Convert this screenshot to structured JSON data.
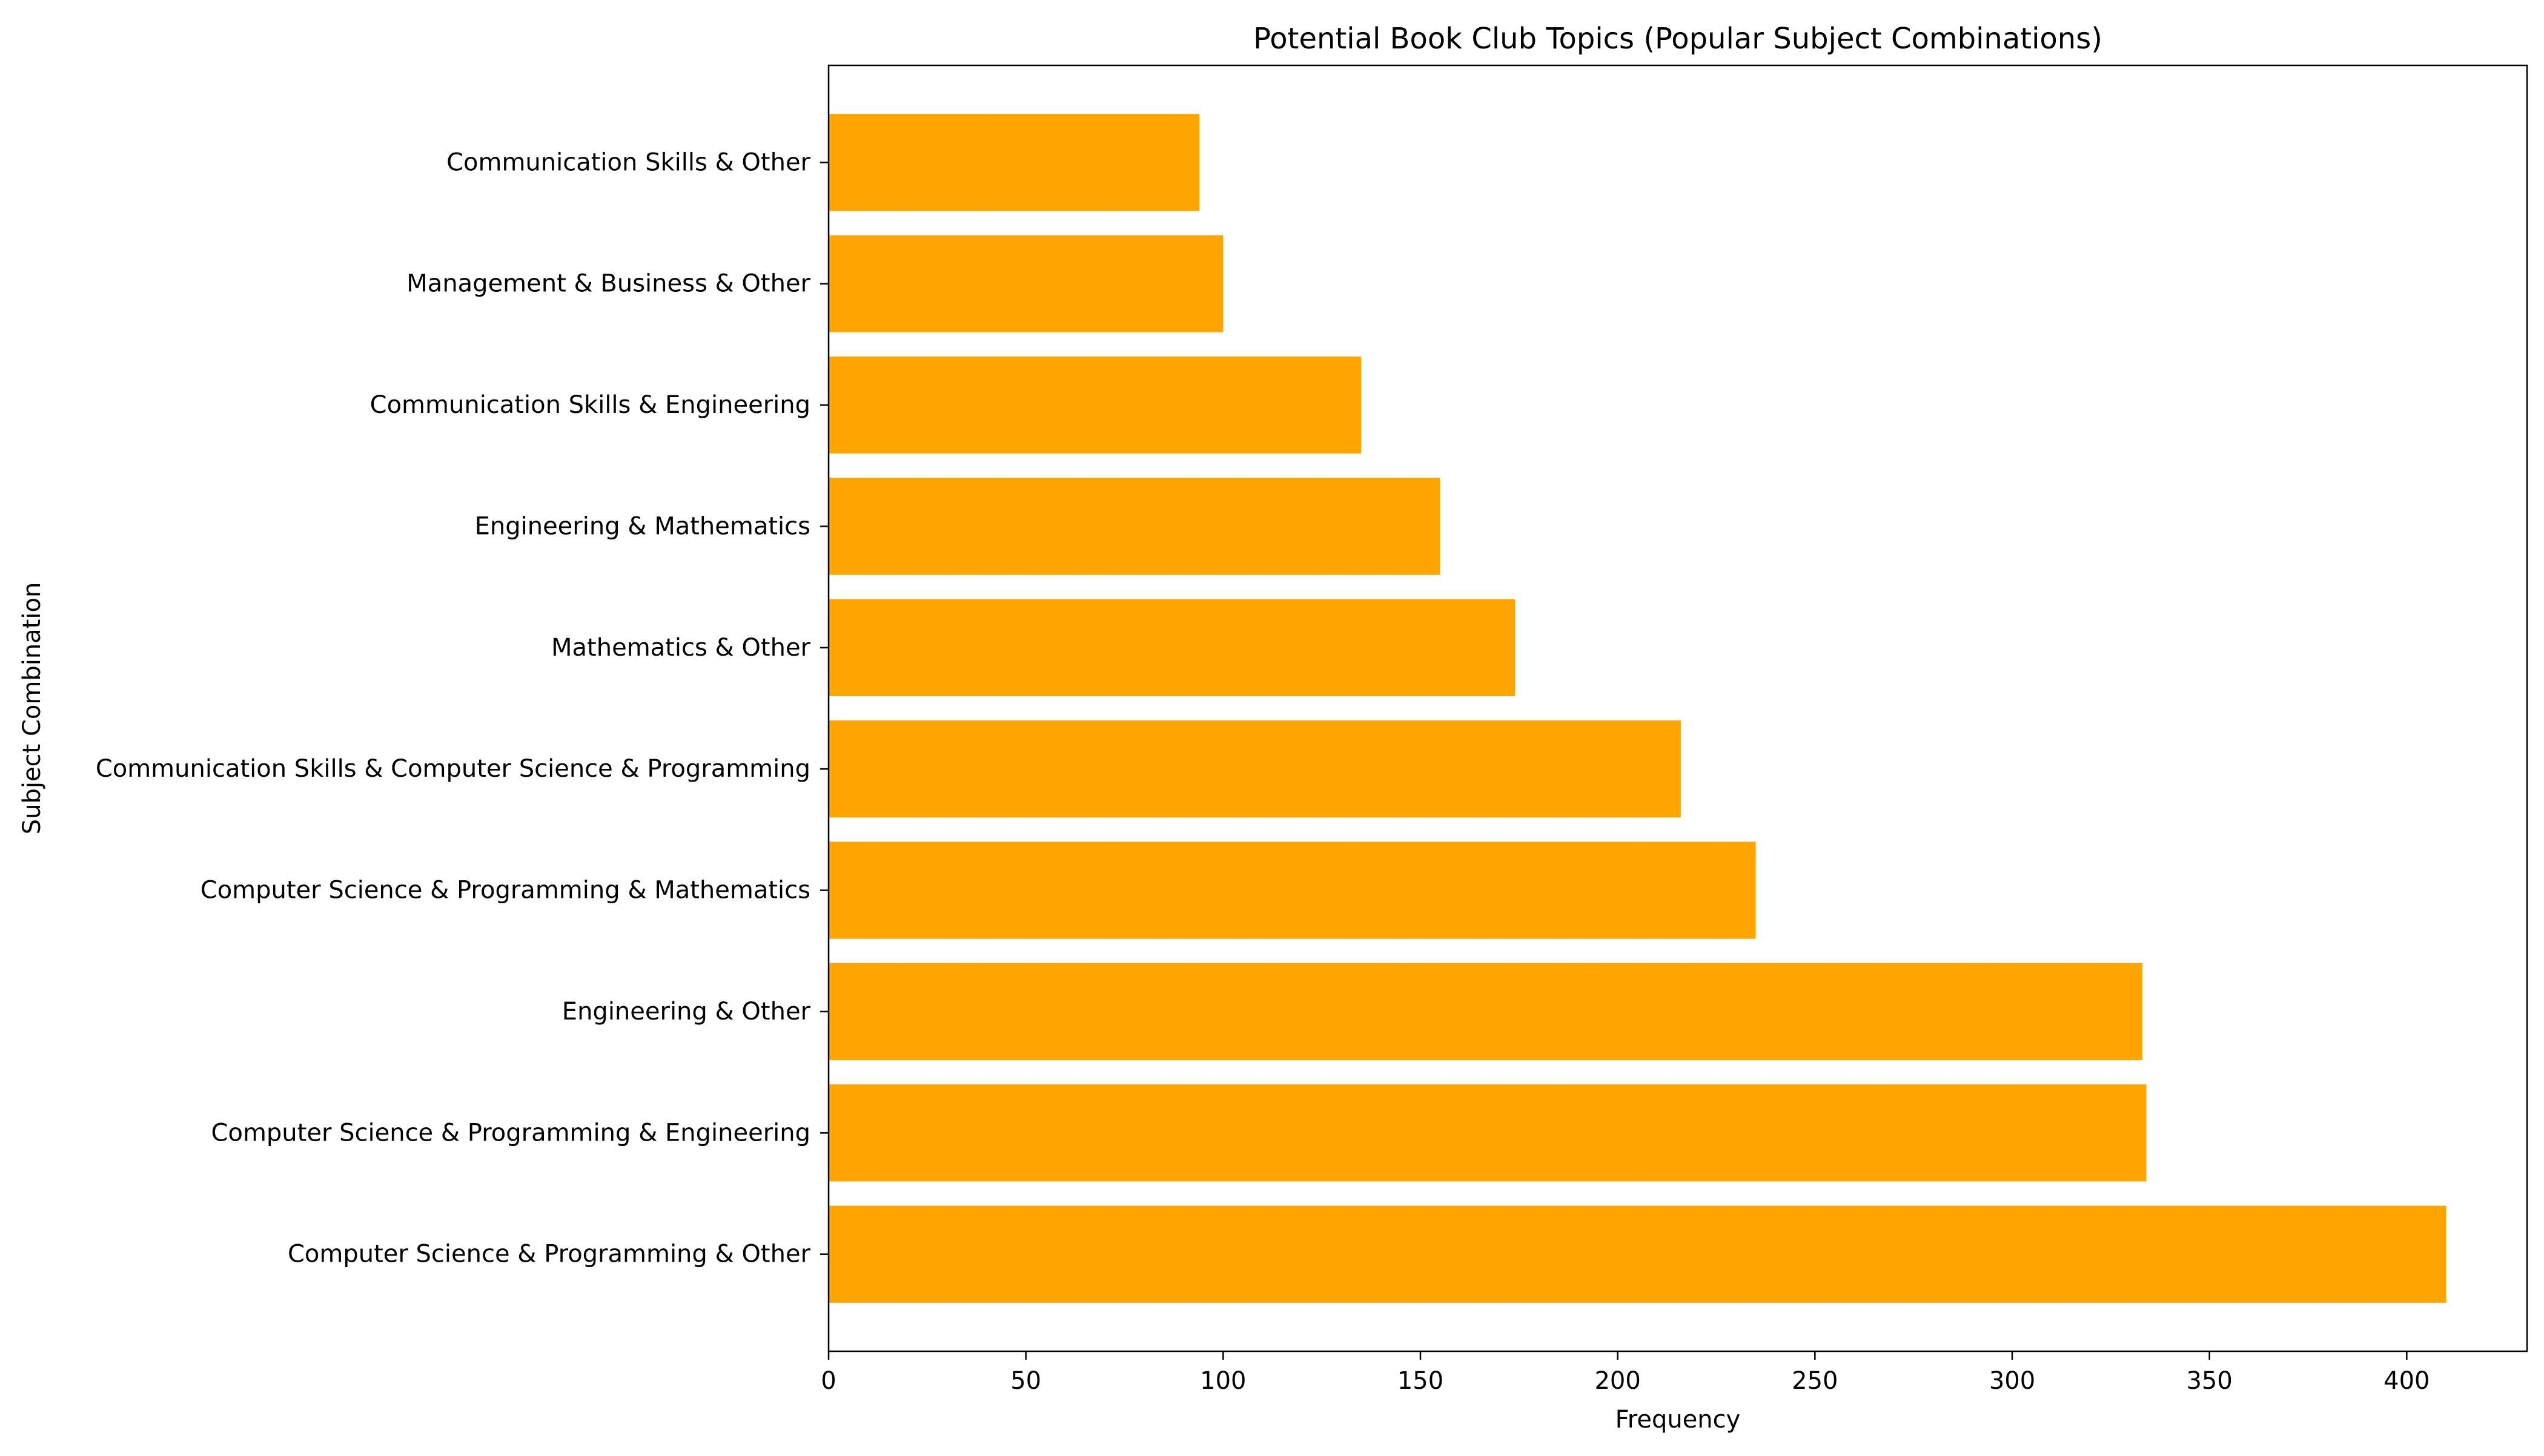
{
  "chart_data": {
    "type": "bar",
    "orientation": "horizontal",
    "title": "Potential Book Club Topics (Popular Subject Combinations)",
    "xlabel": "Frequency",
    "ylabel": "Subject Combination",
    "categories": [
      "Computer Science & Programming & Other",
      "Computer Science & Programming & Engineering",
      "Engineering & Other",
      "Computer Science & Programming & Mathematics",
      "Communication Skills & Computer Science & Programming",
      "Mathematics & Other",
      "Engineering & Mathematics",
      "Communication Skills & Engineering",
      "Management & Business & Other",
      "Communication Skills & Other"
    ],
    "values": [
      410,
      334,
      333,
      235,
      216,
      174,
      155,
      135,
      100,
      94
    ],
    "xlim": [
      0,
      430.5
    ],
    "xticks": [
      0,
      50,
      100,
      150,
      200,
      250,
      300,
      350,
      400
    ],
    "bar_color": "#FFA500",
    "grid": false,
    "legend": "none"
  }
}
